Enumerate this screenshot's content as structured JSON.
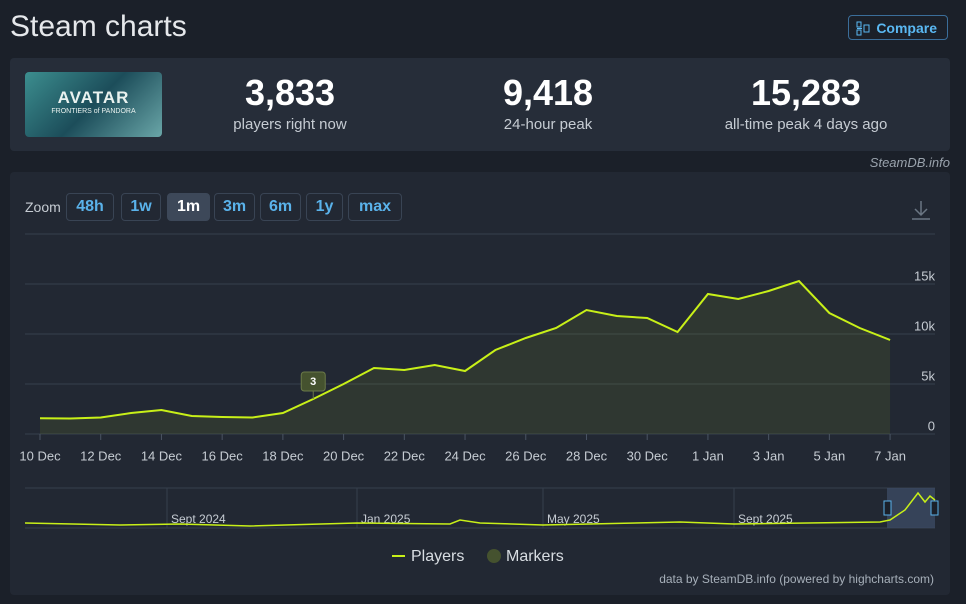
{
  "header": {
    "title": "Steam charts",
    "compare": "Compare"
  },
  "game": {
    "logo_title": "AVATAR",
    "logo_subtitle": "FRONTIERS of PANDORA"
  },
  "stats": [
    {
      "value": "3,833",
      "label": "players right now"
    },
    {
      "value": "9,418",
      "label": "24-hour peak"
    },
    {
      "value": "15,283",
      "label": "all-time peak 4 days ago"
    }
  ],
  "attribution": "SteamDB.info",
  "zoom": {
    "label": "Zoom",
    "options": [
      "48h",
      "1w",
      "1m",
      "3m",
      "6m",
      "1y",
      "max"
    ],
    "active": "1m"
  },
  "chart_data": {
    "type": "line",
    "categories": [
      "10 Dec",
      null,
      "12 Dec",
      null,
      "14 Dec",
      null,
      "16 Dec",
      null,
      "18 Dec",
      null,
      "20 Dec",
      null,
      "22 Dec",
      null,
      "24 Dec",
      null,
      "26 Dec",
      null,
      "28 Dec",
      null,
      "30 Dec",
      null,
      "1 Jan",
      null,
      "3 Jan",
      null,
      "5 Jan",
      null,
      "7 Jan"
    ],
    "series": [
      {
        "name": "Players",
        "color": "#c8f018",
        "values": [
          1580,
          1550,
          1650,
          2100,
          2400,
          1800,
          1700,
          1650,
          2100,
          3500,
          5000,
          6600,
          6400,
          6900,
          6300,
          8400,
          9600,
          10600,
          12400,
          11800,
          11600,
          10200,
          14000,
          13500,
          14300,
          15300,
          12100,
          10600,
          9400
        ]
      },
      {
        "name": "Markers",
        "type": "flags",
        "color": "#45522f",
        "values": [
          null,
          null,
          null,
          null,
          null,
          null,
          null,
          null,
          null,
          3,
          null,
          null,
          null,
          null,
          null,
          null,
          null,
          null,
          null,
          null,
          null,
          null,
          null,
          null,
          null,
          null,
          null,
          null,
          null
        ]
      }
    ],
    "ylim": [
      0,
      20000
    ],
    "yticks": [
      0,
      {
        "value": 5000,
        "label": "5k"
      },
      {
        "value": 10000,
        "label": "10k"
      },
      {
        "value": 15000,
        "label": "15k"
      }
    ],
    "grid": true
  },
  "navigator": {
    "labels": [
      "Sept 2024",
      "Jan 2025",
      "May 2025",
      "Sept 2025"
    ]
  },
  "credits": "data by SteamDB.info (powered by highcharts.com)"
}
